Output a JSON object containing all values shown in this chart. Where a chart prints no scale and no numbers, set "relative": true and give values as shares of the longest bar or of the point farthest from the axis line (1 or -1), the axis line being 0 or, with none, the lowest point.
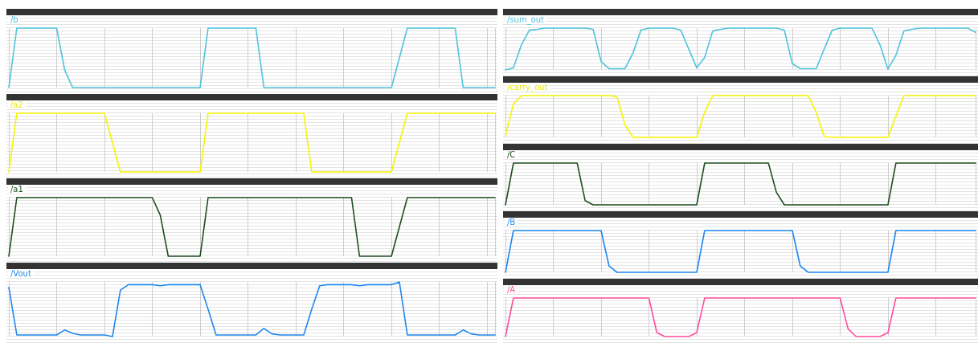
{
  "chart_data": [
    {
      "type": "line",
      "title": "/b",
      "relative": true,
      "grid": true,
      "categories": [
        null,
        null,
        null,
        null,
        null,
        null,
        null,
        null,
        null,
        null,
        null,
        null,
        null,
        null,
        null,
        null,
        null,
        null,
        null,
        null,
        null,
        null,
        null,
        null,
        null,
        null,
        null,
        null,
        null,
        null,
        null,
        null,
        null,
        null,
        null,
        null,
        null,
        null,
        null,
        null,
        null,
        null,
        null,
        null,
        null,
        null,
        null,
        null,
        null,
        null,
        null,
        null,
        null,
        null,
        null,
        null,
        null,
        null,
        null,
        null,
        null,
        null
      ],
      "series": [
        {
          "color": "#4ec3dc",
          "values": [
            0,
            1,
            1,
            1,
            1,
            1,
            1,
            0.3,
            0,
            0,
            0,
            0,
            0,
            0,
            0,
            0,
            0,
            0,
            0,
            0,
            0,
            0,
            0,
            0,
            0,
            1,
            1,
            1,
            1,
            1,
            1,
            1,
            0,
            0,
            0,
            0,
            0,
            0,
            0,
            0,
            0,
            0,
            0,
            0,
            0,
            0,
            0,
            0,
            0,
            0.5,
            1,
            1,
            1,
            1,
            1,
            1,
            1,
            0,
            0,
            0,
            0,
            0
          ]
        }
      ]
    },
    {
      "type": "line",
      "title": "/a2",
      "relative": true,
      "grid": true,
      "categories": [
        null,
        null,
        null,
        null,
        null,
        null,
        null,
        null,
        null,
        null,
        null,
        null,
        null,
        null,
        null,
        null,
        null,
        null,
        null,
        null,
        null,
        null,
        null,
        null,
        null,
        null,
        null,
        null,
        null,
        null,
        null,
        null,
        null,
        null,
        null,
        null,
        null,
        null,
        null,
        null,
        null,
        null,
        null,
        null,
        null,
        null,
        null,
        null,
        null,
        null,
        null,
        null,
        null,
        null,
        null,
        null,
        null,
        null,
        null,
        null,
        null,
        null
      ],
      "series": [
        {
          "color": "#f5f500",
          "values": [
            0,
            1,
            1,
            1,
            1,
            1,
            1,
            1,
            1,
            1,
            1,
            1,
            1,
            0.5,
            0,
            0,
            0,
            0,
            0,
            0,
            0,
            0,
            0,
            0,
            0,
            1,
            1,
            1,
            1,
            1,
            1,
            1,
            1,
            1,
            1,
            1,
            1,
            1,
            0,
            0,
            0,
            0,
            0,
            0,
            0,
            0,
            0,
            0,
            0,
            0.5,
            1,
            1,
            1,
            1,
            1,
            1,
            1,
            1,
            1,
            1,
            1,
            1
          ]
        }
      ]
    },
    {
      "type": "line",
      "title": "/a1",
      "relative": true,
      "grid": true,
      "categories": [
        null,
        null,
        null,
        null,
        null,
        null,
        null,
        null,
        null,
        null,
        null,
        null,
        null,
        null,
        null,
        null,
        null,
        null,
        null,
        null,
        null,
        null,
        null,
        null,
        null,
        null,
        null,
        null,
        null,
        null,
        null,
        null,
        null,
        null,
        null,
        null,
        null,
        null,
        null,
        null,
        null,
        null,
        null,
        null,
        null,
        null,
        null,
        null,
        null,
        null,
        null,
        null,
        null,
        null,
        null,
        null,
        null,
        null,
        null,
        null,
        null,
        null
      ],
      "series": [
        {
          "color": "#1f4f1f",
          "values": [
            0,
            1,
            1,
            1,
            1,
            1,
            1,
            1,
            1,
            1,
            1,
            1,
            1,
            1,
            1,
            1,
            1,
            1,
            1,
            0.7,
            0,
            0,
            0,
            0,
            0,
            1,
            1,
            1,
            1,
            1,
            1,
            1,
            1,
            1,
            1,
            1,
            1,
            1,
            1,
            1,
            1,
            1,
            1,
            1,
            0,
            0,
            0,
            0,
            0,
            0.5,
            1,
            1,
            1,
            1,
            1,
            1,
            1,
            1,
            1,
            1,
            1,
            1
          ]
        }
      ]
    },
    {
      "type": "line",
      "title": "/Vout",
      "relative": true,
      "grid": true,
      "categories": [
        null,
        null,
        null,
        null,
        null,
        null,
        null,
        null,
        null,
        null,
        null,
        null,
        null,
        null,
        null,
        null,
        null,
        null,
        null,
        null,
        null,
        null,
        null,
        null,
        null,
        null,
        null,
        null,
        null,
        null,
        null,
        null,
        null,
        null,
        null,
        null,
        null,
        null,
        null,
        null,
        null,
        null,
        null,
        null,
        null,
        null,
        null,
        null,
        null,
        null,
        null,
        null,
        null,
        null,
        null,
        null,
        null,
        null,
        null,
        null,
        null,
        null
      ],
      "series": [
        {
          "color": "#1e88f0",
          "values": [
            0.9,
            0.03,
            0.03,
            0.03,
            0.03,
            0.03,
            0.03,
            0.12,
            0.06,
            0.03,
            0.03,
            0.03,
            0.03,
            0,
            0.85,
            0.95,
            0.95,
            0.95,
            0.95,
            0.93,
            0.95,
            0.95,
            0.95,
            0.95,
            0.95,
            0.5,
            0.03,
            0.03,
            0.03,
            0.03,
            0.03,
            0.03,
            0.15,
            0.05,
            0.03,
            0.03,
            0.03,
            0.03,
            0.5,
            0.93,
            0.95,
            0.95,
            0.95,
            0.95,
            0.93,
            0.95,
            0.95,
            0.95,
            0.95,
            1,
            0.03,
            0.03,
            0.03,
            0.03,
            0.03,
            0.03,
            0.03,
            0.12,
            0.05,
            0.03,
            0.03,
            0.03
          ]
        }
      ]
    },
    {
      "type": "line",
      "title": "/sum_out",
      "relative": true,
      "grid": true,
      "categories": [
        null,
        null,
        null,
        null,
        null,
        null,
        null,
        null,
        null,
        null,
        null,
        null,
        null,
        null,
        null,
        null,
        null,
        null,
        null,
        null,
        null,
        null,
        null,
        null,
        null,
        null,
        null,
        null,
        null,
        null,
        null,
        null,
        null,
        null,
        null,
        null,
        null,
        null,
        null,
        null,
        null,
        null,
        null,
        null,
        null,
        null,
        null,
        null,
        null,
        null,
        null,
        null,
        null,
        null,
        null,
        null,
        null,
        null,
        null,
        null
      ],
      "series": [
        {
          "color": "#4ec3dc",
          "values": [
            0,
            0.05,
            0.6,
            0.95,
            0.97,
            1,
            1,
            1,
            1,
            1,
            1,
            0.97,
            0.2,
            0.03,
            0.03,
            0.03,
            0.4,
            0.95,
            1,
            1,
            1,
            1,
            0.95,
            0.5,
            0.05,
            0.3,
            0.93,
            0.97,
            1,
            1,
            1,
            1,
            1,
            1,
            1,
            0.95,
            0.15,
            0.03,
            0.03,
            0.03,
            0.5,
            0.95,
            1,
            1,
            1,
            1,
            1,
            0.6,
            0.02,
            0.35,
            0.93,
            0.97,
            1,
            1,
            1,
            1,
            1,
            1,
            1,
            0.9
          ]
        }
      ]
    },
    {
      "type": "line",
      "title": "/carry_out",
      "relative": true,
      "grid": true,
      "categories": [
        null,
        null,
        null,
        null,
        null,
        null,
        null,
        null,
        null,
        null,
        null,
        null,
        null,
        null,
        null,
        null,
        null,
        null,
        null,
        null,
        null,
        null,
        null,
        null,
        null,
        null,
        null,
        null,
        null,
        null,
        null,
        null,
        null,
        null,
        null,
        null,
        null,
        null,
        null,
        null,
        null,
        null,
        null,
        null,
        null,
        null,
        null,
        null,
        null,
        null,
        null,
        null,
        null,
        null,
        null,
        null,
        null,
        null,
        null,
        null
      ],
      "series": [
        {
          "color": "#f5f500",
          "values": [
            0.05,
            0.8,
            1,
            1,
            1,
            1,
            1,
            1,
            1,
            1,
            1,
            1,
            1,
            1,
            0.97,
            0.3,
            0,
            0,
            0,
            0,
            0,
            0,
            0,
            0,
            0,
            0.6,
            1,
            1,
            1,
            1,
            1,
            1,
            1,
            1,
            1,
            1,
            1,
            1,
            1,
            0.6,
            0.02,
            0,
            0,
            0,
            0,
            0,
            0,
            0,
            0,
            0.5,
            1,
            1,
            1,
            1,
            1,
            1,
            1,
            1,
            1,
            1
          ]
        }
      ]
    },
    {
      "type": "line",
      "title": "/C",
      "relative": true,
      "grid": true,
      "categories": [
        null,
        null,
        null,
        null,
        null,
        null,
        null,
        null,
        null,
        null,
        null,
        null,
        null,
        null,
        null,
        null,
        null,
        null,
        null,
        null,
        null,
        null,
        null,
        null,
        null,
        null,
        null,
        null,
        null,
        null,
        null,
        null,
        null,
        null,
        null,
        null,
        null,
        null,
        null,
        null,
        null,
        null,
        null,
        null,
        null,
        null,
        null,
        null,
        null,
        null,
        null,
        null,
        null,
        null,
        null,
        null,
        null,
        null,
        null,
        null
      ],
      "series": [
        {
          "color": "#1f4f1f",
          "values": [
            0,
            1,
            1,
            1,
            1,
            1,
            1,
            1,
            1,
            1,
            0.1,
            0,
            0,
            0,
            0,
            0,
            0,
            0,
            0,
            0,
            0,
            0,
            0,
            0,
            0,
            1,
            1,
            1,
            1,
            1,
            1,
            1,
            1,
            1,
            0.3,
            0,
            0,
            0,
            0,
            0,
            0,
            0,
            0,
            0,
            0,
            0,
            0,
            0,
            0,
            1,
            1,
            1,
            1,
            1,
            1,
            1,
            1,
            1,
            1,
            1
          ]
        }
      ]
    },
    {
      "type": "line",
      "title": "/B",
      "relative": true,
      "grid": true,
      "categories": [
        null,
        null,
        null,
        null,
        null,
        null,
        null,
        null,
        null,
        null,
        null,
        null,
        null,
        null,
        null,
        null,
        null,
        null,
        null,
        null,
        null,
        null,
        null,
        null,
        null,
        null,
        null,
        null,
        null,
        null,
        null,
        null,
        null,
        null,
        null,
        null,
        null,
        null,
        null,
        null,
        null,
        null,
        null,
        null,
        null,
        null,
        null,
        null,
        null,
        null,
        null,
        null,
        null,
        null,
        null,
        null,
        null,
        null,
        null,
        null
      ],
      "series": [
        {
          "color": "#1e88f0",
          "values": [
            0,
            1,
            1,
            1,
            1,
            1,
            1,
            1,
            1,
            1,
            1,
            1,
            1,
            0.15,
            0,
            0,
            0,
            0,
            0,
            0,
            0,
            0,
            0,
            0,
            0,
            1,
            1,
            1,
            1,
            1,
            1,
            1,
            1,
            1,
            1,
            1,
            1,
            0.15,
            0,
            0,
            0,
            0,
            0,
            0,
            0,
            0,
            0,
            0,
            0,
            1,
            1,
            1,
            1,
            1,
            1,
            1,
            1,
            1,
            1,
            1
          ]
        }
      ]
    },
    {
      "type": "line",
      "title": "/A",
      "relative": true,
      "grid": true,
      "categories": [
        null,
        null,
        null,
        null,
        null,
        null,
        null,
        null,
        null,
        null,
        null,
        null,
        null,
        null,
        null,
        null,
        null,
        null,
        null,
        null,
        null,
        null,
        null,
        null,
        null,
        null,
        null,
        null,
        null,
        null,
        null,
        null,
        null,
        null,
        null,
        null,
        null,
        null,
        null,
        null,
        null,
        null,
        null,
        null,
        null,
        null,
        null,
        null,
        null,
        null,
        null,
        null,
        null,
        null,
        null,
        null,
        null,
        null,
        null,
        null
      ],
      "series": [
        {
          "color": "#ff4fa0",
          "values": [
            0,
            1,
            1,
            1,
            1,
            1,
            1,
            1,
            1,
            1,
            1,
            1,
            1,
            1,
            1,
            1,
            1,
            1,
            1,
            0.1,
            0,
            0,
            0,
            0,
            0.1,
            1,
            1,
            1,
            1,
            1,
            1,
            1,
            1,
            1,
            1,
            1,
            1,
            1,
            1,
            1,
            1,
            1,
            1,
            0.2,
            0,
            0,
            0,
            0,
            0.1,
            1,
            1,
            1,
            1,
            1,
            1,
            1,
            1,
            1,
            1,
            1
          ]
        }
      ]
    }
  ]
}
